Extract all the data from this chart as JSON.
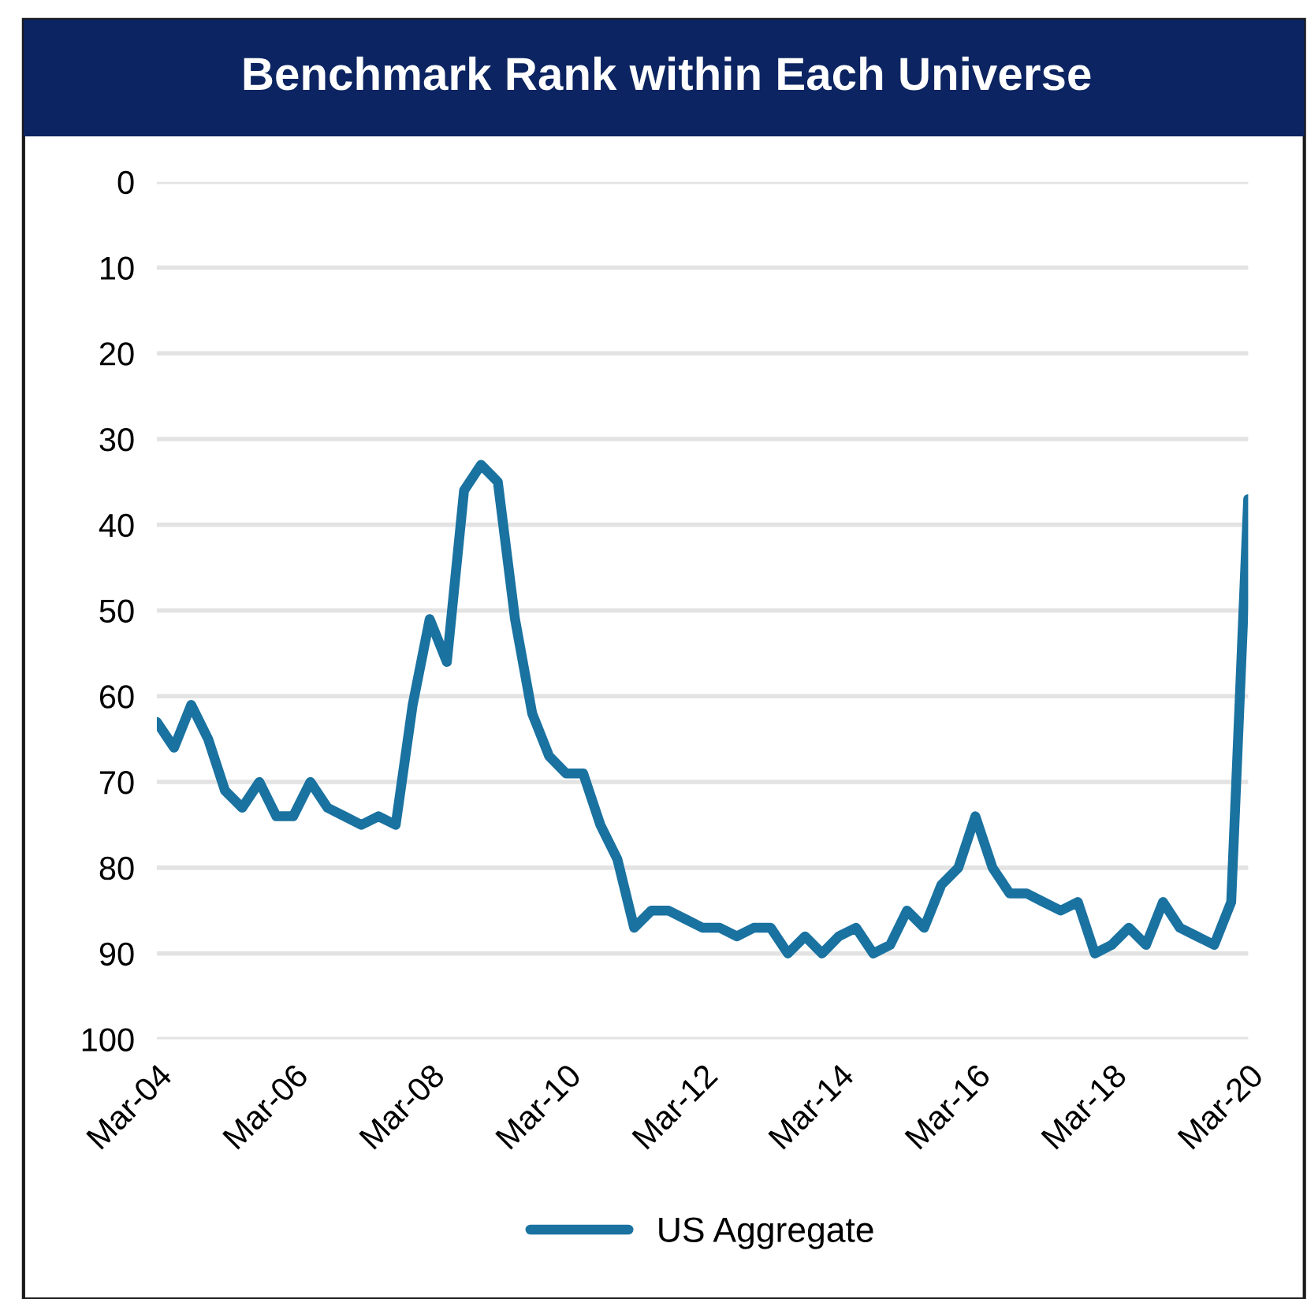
{
  "chart_data": {
    "type": "line",
    "title": "Benchmark Rank within Each Universe",
    "x": [
      "2004-03",
      "2004-06",
      "2004-09",
      "2004-12",
      "2005-03",
      "2005-06",
      "2005-09",
      "2005-12",
      "2006-03",
      "2006-06",
      "2006-09",
      "2006-12",
      "2007-03",
      "2007-06",
      "2007-09",
      "2007-12",
      "2008-03",
      "2008-06",
      "2008-09",
      "2008-12",
      "2009-03",
      "2009-06",
      "2009-09",
      "2009-12",
      "2010-03",
      "2010-06",
      "2010-09",
      "2010-12",
      "2011-03",
      "2011-06",
      "2011-09",
      "2011-12",
      "2012-03",
      "2012-06",
      "2012-09",
      "2012-12",
      "2013-03",
      "2013-06",
      "2013-09",
      "2013-12",
      "2014-03",
      "2014-06",
      "2014-09",
      "2014-12",
      "2015-03",
      "2015-06",
      "2015-09",
      "2015-12",
      "2016-03",
      "2016-06",
      "2016-09",
      "2016-12",
      "2017-03",
      "2017-06",
      "2017-09",
      "2017-12",
      "2018-03",
      "2018-06",
      "2018-09",
      "2018-12",
      "2019-03",
      "2019-06",
      "2019-09",
      "2019-12",
      "2020-03"
    ],
    "series": [
      {
        "name": "US Aggregate",
        "color": "#1a72a0",
        "values": [
          63,
          66,
          61,
          65,
          71,
          73,
          70,
          74,
          74,
          70,
          73,
          74,
          75,
          74,
          75,
          61,
          51,
          56,
          36,
          33,
          35,
          51,
          62,
          67,
          69,
          69,
          75,
          79,
          87,
          85,
          85,
          86,
          87,
          87,
          88,
          87,
          87,
          90,
          88,
          90,
          88,
          87,
          90,
          89,
          85,
          87,
          82,
          80,
          74,
          80,
          83,
          83,
          84,
          85,
          84,
          90,
          89,
          87,
          89,
          84,
          87,
          88,
          89,
          84,
          37
        ]
      }
    ],
    "xlim": [
      "2004-03",
      "2020-03"
    ],
    "xticks": [
      {
        "value": "2004-03",
        "label": "Mar-04"
      },
      {
        "value": "2006-03",
        "label": "Mar-06"
      },
      {
        "value": "2008-03",
        "label": "Mar-08"
      },
      {
        "value": "2010-03",
        "label": "Mar-10"
      },
      {
        "value": "2012-03",
        "label": "Mar-12"
      },
      {
        "value": "2014-03",
        "label": "Mar-14"
      },
      {
        "value": "2016-03",
        "label": "Mar-16"
      },
      {
        "value": "2018-03",
        "label": "Mar-18"
      },
      {
        "value": "2020-03",
        "label": "Mar-20"
      }
    ],
    "ylim": [
      100,
      0
    ],
    "yticks": [
      0,
      10,
      20,
      30,
      40,
      50,
      60,
      70,
      80,
      90,
      100
    ],
    "grid": "y",
    "legend": "bottom",
    "marker": "none",
    "line_style": "solid"
  }
}
